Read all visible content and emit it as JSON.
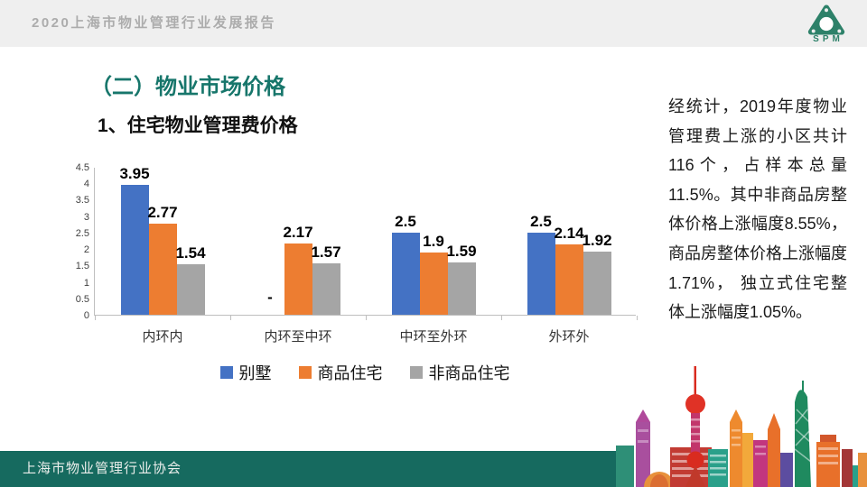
{
  "header": {
    "title": "2020上海市物业管理行业发展报告",
    "logo_text": "SPM"
  },
  "slide": {
    "section_title": "（二）物业市场价格",
    "subtitle": "1、住宅物业管理费价格"
  },
  "chart_data": {
    "type": "bar",
    "categories": [
      "内环内",
      "内环至中环",
      "中环至外环",
      "外环外"
    ],
    "series": [
      {
        "name": "别墅",
        "color": "#4472C4",
        "values": [
          3.95,
          null,
          2.5,
          2.5
        ]
      },
      {
        "name": "商品住宅",
        "color": "#ED7D31",
        "values": [
          2.77,
          2.17,
          1.9,
          2.14
        ]
      },
      {
        "name": "非商品住宅",
        "color": "#A5A5A5",
        "values": [
          1.54,
          1.57,
          1.59,
          1.92
        ]
      }
    ],
    "null_label": "-",
    "title": "",
    "xlabel": "",
    "ylabel": "",
    "ylim": [
      0,
      4.5
    ],
    "yticks": [
      0,
      0.5,
      1,
      1.5,
      2,
      2.5,
      3,
      3.5,
      4,
      4.5
    ],
    "grid": false,
    "legend_position": "bottom",
    "axis_color": "#BFBFBF"
  },
  "side_text": {
    "paragraph": "经统计，2019年度物业管理费上涨的小区共计116个，占样本总量11.5%。其中非商品房整体价格上涨幅度8.55%，商品房整体价格上涨幅度1.71%， 独立式住宅整体上涨幅度1.05%。"
  },
  "footer": {
    "org": "上海市物业管理行业协会"
  },
  "colors": {
    "accent_green": "#17766B",
    "footer_green": "#166A5F",
    "header_bg": "#EFEFEF",
    "header_text": "#ACACAC",
    "bar_blue": "#4472C4",
    "bar_orange": "#ED7D31",
    "bar_gray": "#A5A5A5"
  }
}
